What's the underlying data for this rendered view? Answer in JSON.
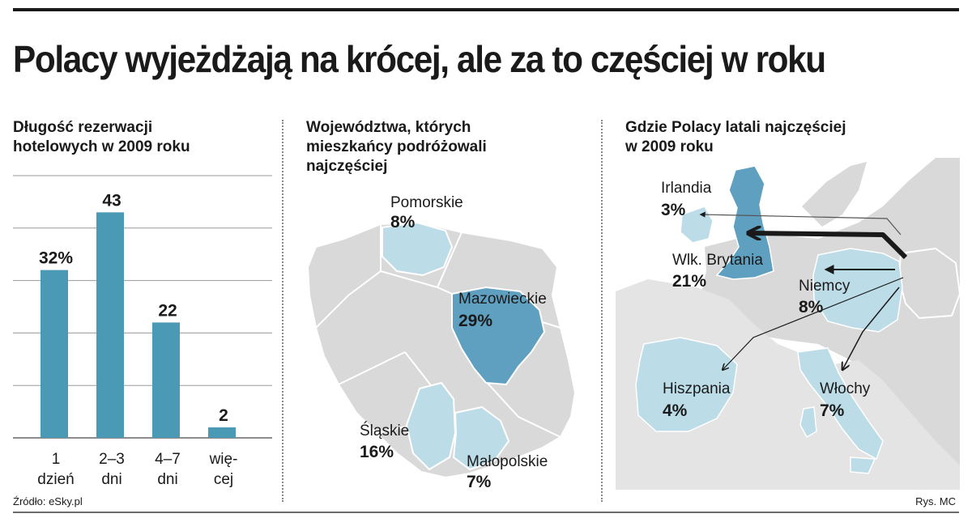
{
  "title": "Polacy wyjeżdżają na krócej, ale za to częściej w roku",
  "source": "Źródło: eSky.pl",
  "credit": "Rys. MC",
  "colors": {
    "bar": "#4a9ab5",
    "dark_region": "#5f9fc0",
    "light_region": "#bcdce8",
    "gray_region": "#d9d9d9",
    "outline": "#ffffff"
  },
  "panel1": {
    "title_line1": "Długość rezerwacji",
    "title_line2": "hotelowych w 2009 roku"
  },
  "panel2": {
    "title_line1": "Województwa, których",
    "title_line2": "mieszkańcy podróżowali",
    "title_line3": "najczęściej",
    "regions": [
      {
        "name": "Pomorskie",
        "pct": "8%"
      },
      {
        "name": "Mazowieckie",
        "pct": "29%"
      },
      {
        "name": "Śląskie",
        "pct": "16%"
      },
      {
        "name": "Małopolskie",
        "pct": "7%"
      }
    ]
  },
  "panel3": {
    "title_line1": "Gdzie Polacy latali najczęściej",
    "title_line2": "w 2009 roku",
    "countries": [
      {
        "name": "Irlandia",
        "pct": "3%"
      },
      {
        "name": "Wlk. Brytania",
        "pct": "21%"
      },
      {
        "name": "Niemcy",
        "pct": "8%"
      },
      {
        "name": "Hiszpania",
        "pct": "4%"
      },
      {
        "name": "Włochy",
        "pct": "7%"
      }
    ]
  },
  "chart_data": [
    {
      "type": "bar",
      "title": "Długość rezerwacji hotelowych w 2009 roku",
      "categories": [
        [
          "1",
          "dzień"
        ],
        [
          "2–3",
          "dni"
        ],
        [
          "4–7",
          "dni"
        ],
        [
          "wię-",
          "cej"
        ]
      ],
      "values": [
        32,
        43,
        22,
        2
      ],
      "value_labels": [
        "32%",
        "43",
        "22",
        "2"
      ],
      "ylim": [
        0,
        50
      ],
      "grid": true,
      "gridlines": [
        10,
        20,
        30,
        40,
        50
      ]
    },
    {
      "type": "table",
      "title": "Województwa, których mieszkańcy podróżowali najczęściej",
      "rows": [
        [
          "Pomorskie",
          8
        ],
        [
          "Mazowieckie",
          29
        ],
        [
          "Śląskie",
          16
        ],
        [
          "Małopolskie",
          7
        ]
      ]
    },
    {
      "type": "table",
      "title": "Gdzie Polacy latali najczęściej w 2009 roku",
      "rows": [
        [
          "Irlandia",
          3
        ],
        [
          "Wlk. Brytania",
          21
        ],
        [
          "Niemcy",
          8
        ],
        [
          "Hiszpania",
          4
        ],
        [
          "Włochy",
          7
        ]
      ]
    }
  ]
}
